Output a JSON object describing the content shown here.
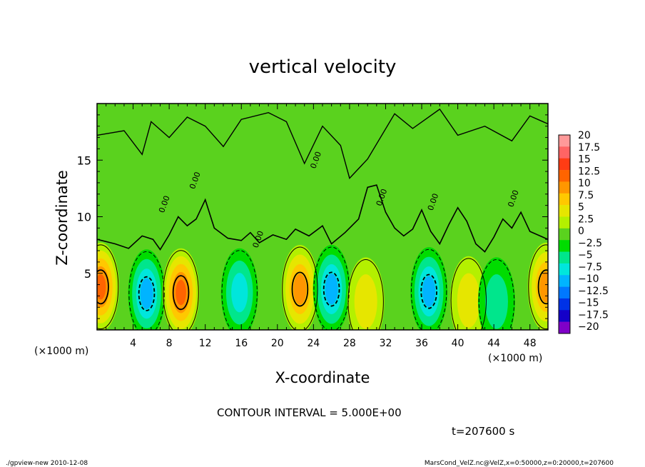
{
  "chart_data": {
    "type": "heatmap",
    "title": "vertical velocity",
    "xlabel": "X-coordinate",
    "ylabel": "Z-coordinate",
    "x_unit_label": "(×1000 m)",
    "xlim": [
      0,
      50
    ],
    "ylim": [
      0,
      20
    ],
    "x_ticks": [
      "4",
      "8",
      "12",
      "16",
      "20",
      "24",
      "28",
      "32",
      "36",
      "40",
      "44",
      "48"
    ],
    "y_ticks": [
      "5",
      "10",
      "15"
    ],
    "contour_interval_text": "CONTOUR INTERVAL = 5.000E+00",
    "time_text": "t=207600 s",
    "contour_zero_label": "0.00",
    "colorbar": {
      "labels": [
        "20",
        "17.5",
        "15",
        "12.5",
        "10",
        "7.5",
        "5",
        "2.5",
        "0",
        "−2.5",
        "−5",
        "−7.5",
        "−10",
        "−12.5",
        "−15",
        "−17.5",
        "−20"
      ],
      "colors": [
        "#ff9999",
        "#ff6464",
        "#ff3c14",
        "#ff6400",
        "#ff9600",
        "#ffc800",
        "#e6e600",
        "#b4f000",
        "#5ad21e",
        "#00dc00",
        "#00e68c",
        "#00e6dc",
        "#00b4ff",
        "#0078ff",
        "#0032e6",
        "#1400c8",
        "#8000c8"
      ]
    },
    "features": [
      {
        "x": 0.4,
        "z": 3.8,
        "peak": 13
      },
      {
        "x": 5.5,
        "z": 3.2,
        "peak": -12
      },
      {
        "x": 9.3,
        "z": 3.3,
        "peak": 14
      },
      {
        "x": 15.8,
        "z": 3.3,
        "peak": -9
      },
      {
        "x": 22.5,
        "z": 3.6,
        "peak": 12
      },
      {
        "x": 26.0,
        "z": 3.6,
        "peak": -10
      },
      {
        "x": 29.8,
        "z": 2.5,
        "peak": 6
      },
      {
        "x": 36.8,
        "z": 3.4,
        "peak": -11
      },
      {
        "x": 41.2,
        "z": 2.6,
        "peak": 6
      },
      {
        "x": 44.3,
        "z": 2.5,
        "peak": -6
      },
      {
        "x": 49.8,
        "z": 3.8,
        "peak": 11
      }
    ]
  },
  "footer": {
    "left": "./gpview-new   2010-12-08",
    "right": "MarsCond_VelZ.nc@VelZ,x=0:50000,z=0:20000,t=207600"
  }
}
